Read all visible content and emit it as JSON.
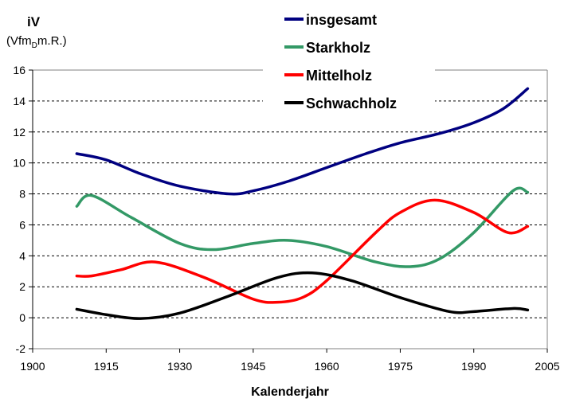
{
  "chart_data": {
    "type": "line",
    "ylabel": "iV",
    "yunit_main": "(Vfm",
    "yunit_sub": "D",
    "yunit_tail": "m.R.)",
    "xlabel": "Kalenderjahr",
    "xlim": [
      1900,
      2005
    ],
    "ylim": [
      -2,
      16
    ],
    "xticks": [
      1900,
      1915,
      1930,
      1945,
      1960,
      1975,
      1990,
      2005
    ],
    "yticks": [
      -2,
      0,
      2,
      4,
      6,
      8,
      10,
      12,
      14,
      16
    ],
    "grid": "horizontal dashed",
    "legend": "top-center",
    "series": [
      {
        "name": "insgesamt",
        "color": "#000080",
        "x": [
          1909,
          1915,
          1922,
          1930,
          1940,
          1945,
          1952,
          1960,
          1968,
          1975,
          1983,
          1990,
          1996,
          2001
        ],
        "y": [
          10.6,
          10.2,
          9.3,
          8.5,
          8.0,
          8.2,
          8.8,
          9.7,
          10.6,
          11.3,
          11.9,
          12.6,
          13.5,
          14.8
        ]
      },
      {
        "name": "Starkholz",
        "color": "#339966",
        "x": [
          1909,
          1912,
          1920,
          1930,
          1937,
          1945,
          1952,
          1960,
          1970,
          1977,
          1983,
          1990,
          1998,
          2001
        ],
        "y": [
          7.2,
          7.9,
          6.5,
          4.8,
          4.4,
          4.8,
          5.0,
          4.6,
          3.6,
          3.3,
          3.8,
          5.5,
          8.2,
          8.1
        ]
      },
      {
        "name": "Mittelholz",
        "color": "#ff0000",
        "x": [
          1909,
          1912,
          1918,
          1925,
          1935,
          1945,
          1950,
          1955,
          1960,
          1970,
          1975,
          1982,
          1990,
          1997,
          2001
        ],
        "y": [
          2.7,
          2.7,
          3.1,
          3.6,
          2.6,
          1.2,
          1.0,
          1.3,
          2.4,
          5.5,
          6.8,
          7.6,
          6.8,
          5.5,
          5.9
        ]
      },
      {
        "name": "Schwachholz",
        "color": "#000000",
        "x": [
          1909,
          1915,
          1922,
          1930,
          1940,
          1950,
          1957,
          1965,
          1975,
          1985,
          1990,
          1998,
          2001
        ],
        "y": [
          0.55,
          0.2,
          -0.05,
          0.3,
          1.4,
          2.6,
          2.9,
          2.4,
          1.3,
          0.4,
          0.4,
          0.6,
          0.5
        ]
      }
    ]
  }
}
